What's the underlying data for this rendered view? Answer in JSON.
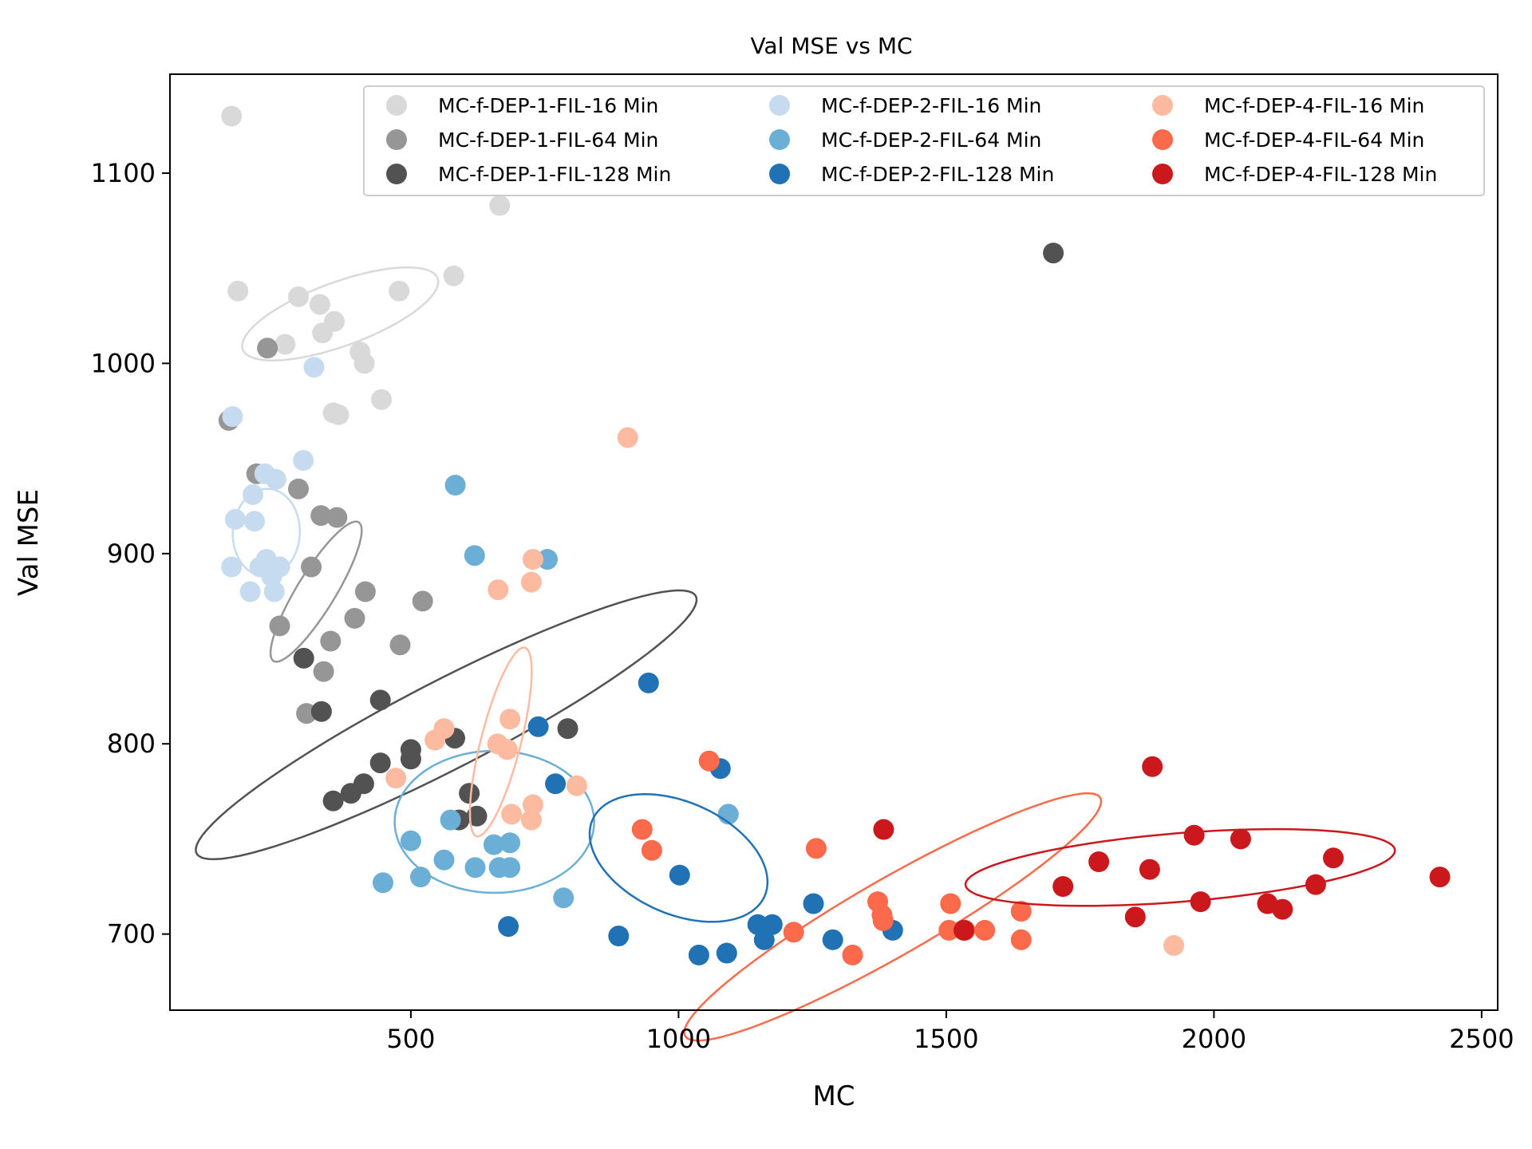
{
  "chart_data": {
    "type": "scatter",
    "title": "Val MSE vs MC",
    "xlabel": "MC",
    "ylabel": "Val MSE",
    "xlim": [
      50,
      2530
    ],
    "ylim": [
      660,
      1152
    ],
    "xticks": [
      500,
      1000,
      1500,
      2000,
      2500
    ],
    "yticks": [
      700,
      800,
      900,
      1000,
      1100
    ],
    "grid": false,
    "legend_position": "top-right",
    "legend_columns": 3,
    "series": [
      {
        "name": "MC-f-DEP-1-FIL-16 Min",
        "color": "#d9d9d9",
        "points": [
          [
            165,
            1130
          ],
          [
            177,
            1038
          ],
          [
            290,
            1035
          ],
          [
            330,
            1031
          ],
          [
            357,
            1022
          ],
          [
            335,
            1016
          ],
          [
            265,
            1010
          ],
          [
            405,
            1006
          ],
          [
            413,
            1000
          ],
          [
            445,
            981
          ],
          [
            355,
            974
          ],
          [
            365,
            973
          ],
          [
            478,
            1038
          ],
          [
            580,
            1046
          ],
          [
            666,
            1083
          ]
        ],
        "ellipse": {
          "cx": 368,
          "cy": 1026,
          "rx": 130,
          "ry": 40,
          "angle": -0.35
        }
      },
      {
        "name": "MC-f-DEP-1-FIL-64 Min",
        "color": "#969696",
        "points": [
          [
            232,
            1008
          ],
          [
            160,
            970
          ],
          [
            212,
            942
          ],
          [
            290,
            934
          ],
          [
            332,
            920
          ],
          [
            362,
            919
          ],
          [
            314,
            893
          ],
          [
            415,
            880
          ],
          [
            522,
            875
          ],
          [
            395,
            866
          ],
          [
            350,
            854
          ],
          [
            480,
            852
          ],
          [
            255,
            862
          ],
          [
            337,
            838
          ],
          [
            305,
            816
          ]
        ],
        "ellipse": {
          "cx": 323,
          "cy": 880,
          "rx": 24,
          "ry": 102,
          "angle": 0.55
        }
      },
      {
        "name": "MC-f-DEP-1-FIL-128 Min",
        "color": "#525252",
        "points": [
          [
            1700,
            1058
          ],
          [
            300,
            845
          ],
          [
            443,
            823
          ],
          [
            333,
            817
          ],
          [
            582,
            803
          ],
          [
            793,
            808
          ],
          [
            500,
            797
          ],
          [
            500,
            792
          ],
          [
            443,
            790
          ],
          [
            412,
            779
          ],
          [
            388,
            774
          ],
          [
            609,
            774
          ],
          [
            623,
            762
          ],
          [
            590,
            760
          ],
          [
            355,
            770
          ]
        ],
        "ellipse": {
          "cx": 566,
          "cy": 810,
          "rx": 55,
          "ry": 352,
          "angle": 1.095
        }
      },
      {
        "name": "MC-f-DEP-2-FIL-16 Min",
        "color": "#c6dbef",
        "points": [
          [
            319,
            998
          ],
          [
            167,
            972
          ],
          [
            299,
            949
          ],
          [
            227,
            942
          ],
          [
            248,
            939
          ],
          [
            205,
            931
          ],
          [
            208,
            917
          ],
          [
            172,
            918
          ],
          [
            230,
            897
          ],
          [
            255,
            893
          ],
          [
            218,
            893
          ],
          [
            165,
            893
          ],
          [
            245,
            880
          ],
          [
            200,
            880
          ],
          [
            240,
            888
          ]
        ],
        "ellipse": {
          "cx": 230,
          "cy": 911,
          "rx": 42,
          "ry": 55,
          "angle": 0.05
        }
      },
      {
        "name": "MC-f-DEP-2-FIL-64 Min",
        "color": "#6baed6",
        "points": [
          [
            583,
            936
          ],
          [
            619,
            899
          ],
          [
            755,
            897
          ],
          [
            1093,
            763
          ],
          [
            574,
            760
          ],
          [
            500,
            749
          ],
          [
            655,
            747
          ],
          [
            685,
            748
          ],
          [
            562,
            739
          ],
          [
            620,
            735
          ],
          [
            665,
            735
          ],
          [
            685,
            735
          ],
          [
            518,
            730
          ],
          [
            448,
            727
          ],
          [
            785,
            719
          ]
        ],
        "ellipse": {
          "cx": 656,
          "cy": 759,
          "rx": 125,
          "ry": 89,
          "angle": 0.0
        }
      },
      {
        "name": "MC-f-DEP-2-FIL-128 Min",
        "color": "#2171b5",
        "points": [
          [
            944,
            832
          ],
          [
            738,
            809
          ],
          [
            1078,
            787
          ],
          [
            770,
            779
          ],
          [
            1002,
            731
          ],
          [
            1252,
            716
          ],
          [
            1148,
            705
          ],
          [
            1175,
            705
          ],
          [
            1160,
            697
          ],
          [
            1288,
            697
          ],
          [
            1400,
            702
          ],
          [
            888,
            699
          ],
          [
            1038,
            689
          ],
          [
            1090,
            690
          ],
          [
            682,
            704
          ]
        ],
        "ellipse": {
          "cx": 1000,
          "cy": 740,
          "rx": 118,
          "ry": 70,
          "angle": 0.42
        }
      },
      {
        "name": "MC-f-DEP-4-FIL-16 Min",
        "color": "#fcbba1",
        "points": [
          [
            905,
            961
          ],
          [
            728,
            897
          ],
          [
            663,
            881
          ],
          [
            725,
            885
          ],
          [
            685,
            813
          ],
          [
            562,
            808
          ],
          [
            545,
            802
          ],
          [
            662,
            800
          ],
          [
            680,
            797
          ],
          [
            472,
            782
          ],
          [
            810,
            778
          ],
          [
            728,
            768
          ],
          [
            688,
            763
          ],
          [
            725,
            760
          ],
          [
            1925,
            694
          ]
        ],
        "ellipse": {
          "cx": 668,
          "cy": 801,
          "rx": 25,
          "ry": 122,
          "angle": 0.25
        }
      },
      {
        "name": "MC-f-DEP-4-FIL-64 Min",
        "color": "#fb6a4a",
        "points": [
          [
            1057,
            791
          ],
          [
            932,
            755
          ],
          [
            950,
            744
          ],
          [
            1257,
            745
          ],
          [
            1372,
            717
          ],
          [
            1508,
            716
          ],
          [
            1640,
            712
          ],
          [
            1382,
            707
          ],
          [
            1215,
            701
          ],
          [
            1572,
            702
          ],
          [
            1505,
            702
          ],
          [
            1640,
            697
          ],
          [
            1325,
            689
          ],
          [
            1535,
            702
          ],
          [
            1380,
            710
          ]
        ],
        "ellipse": {
          "cx": 1400,
          "cy": 709,
          "rx": 48,
          "ry": 300,
          "angle": 1.05
        }
      },
      {
        "name": "MC-f-DEP-4-FIL-128 Min",
        "color": "#cb181d",
        "points": [
          [
            1885,
            788
          ],
          [
            1383,
            755
          ],
          [
            1963,
            752
          ],
          [
            2050,
            750
          ],
          [
            1785,
            738
          ],
          [
            1880,
            734
          ],
          [
            2223,
            740
          ],
          [
            1718,
            725
          ],
          [
            2190,
            726
          ],
          [
            1975,
            717
          ],
          [
            2100,
            716
          ],
          [
            2128,
            713
          ],
          [
            1853,
            709
          ],
          [
            1533,
            702
          ],
          [
            2422,
            730
          ]
        ],
        "ellipse": {
          "cx": 1937,
          "cy": 735,
          "rx": 43,
          "ry": 270,
          "angle": 1.49
        }
      }
    ]
  }
}
